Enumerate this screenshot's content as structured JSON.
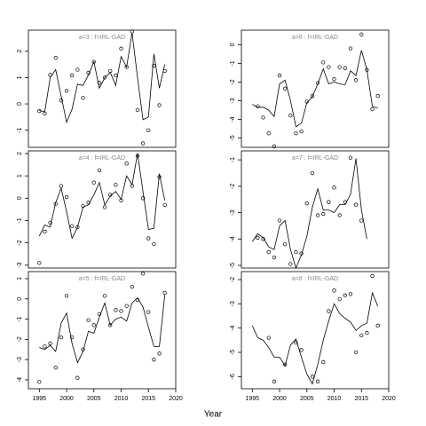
{
  "x_label": "Year",
  "chart_data": [
    {
      "type": "scatter",
      "title": "a=3 : f=IRL-GAD",
      "color": "#000000",
      "x": [
        1995,
        1996,
        1997,
        1998,
        1999,
        2000,
        2001,
        2002,
        2003,
        2004,
        2005,
        2006,
        2007,
        2008,
        2009,
        2010,
        2011,
        2012,
        2013,
        2014,
        2015,
        2016,
        2017,
        2018
      ],
      "values": [
        -0.27,
        -0.37,
        1.1,
        1.75,
        0.13,
        0.5,
        1.08,
        1.3,
        0.23,
        1.18,
        1.6,
        0.8,
        1.0,
        1.25,
        1.08,
        2.1,
        1.4,
        2.75,
        -0.23,
        -1.5,
        -1.0,
        1.45,
        -0.05,
        1.25
      ],
      "fit_values": [
        -0.25,
        -0.3,
        1.0,
        1.3,
        0.3,
        -0.7,
        -0.2,
        0.75,
        0.7,
        1.1,
        1.6,
        0.6,
        1.0,
        1.2,
        0.7,
        1.8,
        1.4,
        2.7,
        1.0,
        -0.6,
        -0.5,
        1.9,
        0.6,
        1.5
      ],
      "xlim": [
        1993,
        2020
      ],
      "ylim": [
        -1.65,
        2.8
      ],
      "yticks": [
        -1,
        0,
        1,
        2
      ]
    },
    {
      "type": "scatter",
      "title": "a=4 : f=IRL-GAD",
      "color": "#000000",
      "x": [
        1995,
        1996,
        1997,
        1998,
        1999,
        2000,
        2001,
        2002,
        2003,
        2004,
        2005,
        2006,
        2007,
        2008,
        2009,
        2010,
        2011,
        2012,
        2013,
        2014,
        2015,
        2016,
        2017,
        2018
      ],
      "values": [
        -2.9,
        -1.5,
        -1.1,
        -0.25,
        0.55,
        0.05,
        -1.25,
        -1.3,
        -0.35,
        -0.2,
        0.7,
        1.25,
        -0.4,
        0.15,
        0.6,
        -0.1,
        1.55,
        0.55,
        1.9,
        0.0,
        -1.8,
        -2.05,
        0.95,
        -0.3
      ],
      "fit_values": [
        -1.7,
        -1.2,
        -1.3,
        -0.2,
        0.45,
        -0.6,
        -1.8,
        -1.3,
        -0.4,
        -0.3,
        0.15,
        0.7,
        -0.3,
        0.1,
        0.3,
        -0.05,
        1.0,
        0.6,
        2.0,
        0.3,
        -1.4,
        -1.35,
        1.1,
        -0.1
      ],
      "xlim": [
        1993,
        2020
      ],
      "ylim": [
        -3.13,
        2.12
      ],
      "yticks": [
        -3,
        -2,
        -1,
        0,
        1,
        2
      ]
    },
    {
      "type": "scatter",
      "title": "a=5 : f=IRL-GAD",
      "color": "#000000",
      "x": [
        1995,
        1996,
        1997,
        1998,
        1999,
        2000,
        2001,
        2002,
        2003,
        2004,
        2005,
        2006,
        2007,
        2008,
        2009,
        2010,
        2011,
        2012,
        2013,
        2014,
        2015,
        2016,
        2017,
        2018
      ],
      "values": [
        -4.1,
        -2.35,
        -2.2,
        -3.4,
        -1.9,
        0.15,
        -1.9,
        -3.9,
        -2.5,
        -1.05,
        -1.3,
        -0.75,
        0.15,
        -1.3,
        -0.55,
        -0.6,
        -0.35,
        0.6,
        -0.05,
        1.25,
        -0.65,
        -3.0,
        -2.7,
        0.3
      ],
      "fit_values": [
        -2.4,
        -2.5,
        -2.3,
        -2.6,
        -1.2,
        -0.7,
        -2.2,
        -3.15,
        -2.6,
        -1.6,
        -1.7,
        -0.9,
        -0.2,
        -1.3,
        -1.0,
        -0.9,
        -1.1,
        -0.2,
        0.05,
        -0.4,
        -1.4,
        -2.35,
        -2.35,
        0.2
      ],
      "xlim": [
        1993,
        2020
      ],
      "ylim": [
        -4.44,
        1.35
      ],
      "yticks": [
        -4,
        -3,
        -2,
        -1,
        0,
        1
      ],
      "xticks": [
        1995,
        2000,
        2005,
        2010,
        2015,
        2020
      ]
    },
    {
      "type": "scatter",
      "title": "a=6 : f=IRL-GAD",
      "color": "#000000",
      "x": [
        1995,
        1996,
        1997,
        1998,
        1999,
        2000,
        2001,
        2002,
        2003,
        2004,
        2005,
        2006,
        2007,
        2008,
        2009,
        2010,
        2011,
        2012,
        2013,
        2014,
        2015,
        2016,
        2017,
        2018
      ],
      "values": [
        null,
        -3.3,
        -3.9,
        -4.75,
        -5.45,
        -1.65,
        -2.35,
        -3.8,
        -4.75,
        -4.65,
        -3.05,
        -2.75,
        -2.05,
        -0.95,
        -1.2,
        -1.85,
        -1.2,
        -1.25,
        -0.2,
        -1.9,
        0.55,
        -1.35,
        -3.45,
        -2.75
      ],
      "fit_values": [
        -3.2,
        -3.35,
        -3.35,
        -3.5,
        -3.85,
        -2.1,
        -1.9,
        -3.0,
        -4.4,
        -4.2,
        -3.1,
        -2.8,
        -2.1,
        -1.3,
        -2.1,
        -2.0,
        -2.1,
        -2.15,
        -1.4,
        -1.65,
        -0.3,
        -1.35,
        -3.3,
        -3.4
      ],
      "xlim": [
        1993,
        2020
      ],
      "ylim": [
        -5.5,
        0.78
      ],
      "yticks": [
        -5,
        -4,
        -3,
        -2,
        -1,
        0
      ]
    },
    {
      "type": "scatter",
      "title": "a=7 : f=IRL-GAD",
      "color": "#000000",
      "x": [
        1995,
        1996,
        1997,
        1998,
        1999,
        2000,
        2001,
        2002,
        2003,
        2004,
        2005,
        2006,
        2007,
        2008,
        2009,
        2010,
        2011,
        2012,
        2013,
        2014,
        2015,
        2016,
        2017,
        2018
      ],
      "values": [
        null,
        -3.95,
        -4.0,
        -4.5,
        -4.7,
        -3.3,
        -4.2,
        -4.95,
        -4.5,
        -4.55,
        -2.65,
        -1.5,
        -3.1,
        -3.05,
        -2.6,
        -2.05,
        -3.1,
        -2.6,
        -0.92,
        -2.7,
        -3.3,
        null,
        null,
        null
      ],
      "fit_values": [
        -4.1,
        -3.8,
        -3.95,
        -4.3,
        -4.4,
        -3.5,
        -3.3,
        -4.4,
        -5.1,
        -4.6,
        -3.9,
        -2.8,
        -2.1,
        -2.9,
        -2.9,
        -3.0,
        -2.7,
        -2.7,
        -2.3,
        -0.95,
        -2.9,
        -4.0,
        null,
        null
      ],
      "xlim": [
        1993,
        2020
      ],
      "ylim": [
        -5.1,
        -0.66
      ],
      "yticks": [
        -5,
        -4,
        -3,
        -2,
        -1
      ]
    },
    {
      "type": "scatter",
      "title": "a=8 : f=IRL-GAD",
      "color": "#000000",
      "x": [
        1995,
        1996,
        1997,
        1998,
        1999,
        2000,
        2001,
        2002,
        2003,
        2004,
        2005,
        2006,
        2007,
        2008,
        2009,
        2010,
        2011,
        2012,
        2013,
        2014,
        2015,
        2016,
        2017,
        2018
      ],
      "values": [
        null,
        null,
        null,
        -4.4,
        -6.2,
        null,
        -5.5,
        null,
        -4.6,
        -4.9,
        null,
        -6.0,
        -6.2,
        -5.4,
        -3.3,
        -2.45,
        -2.8,
        -2.65,
        -2.6,
        -5.0,
        -4.3,
        -4.2,
        -1.85,
        -3.9
      ],
      "fit_values": [
        -3.9,
        -4.4,
        -4.5,
        -4.8,
        -5.2,
        -5.2,
        -5.55,
        -4.7,
        -4.45,
        -5.2,
        -5.9,
        -6.3,
        -5.5,
        -4.5,
        -3.7,
        -3.0,
        -3.4,
        -3.6,
        -3.75,
        -4.1,
        -3.9,
        -3.8,
        -2.55,
        -3.1
      ],
      "xlim": [
        1993,
        2020
      ],
      "ylim": [
        -6.5,
        -1.67
      ],
      "yticks": [
        -6,
        -5,
        -4,
        -3,
        -2
      ],
      "xticks": [
        1995,
        2000,
        2005,
        2010,
        2015,
        2020
      ]
    }
  ]
}
